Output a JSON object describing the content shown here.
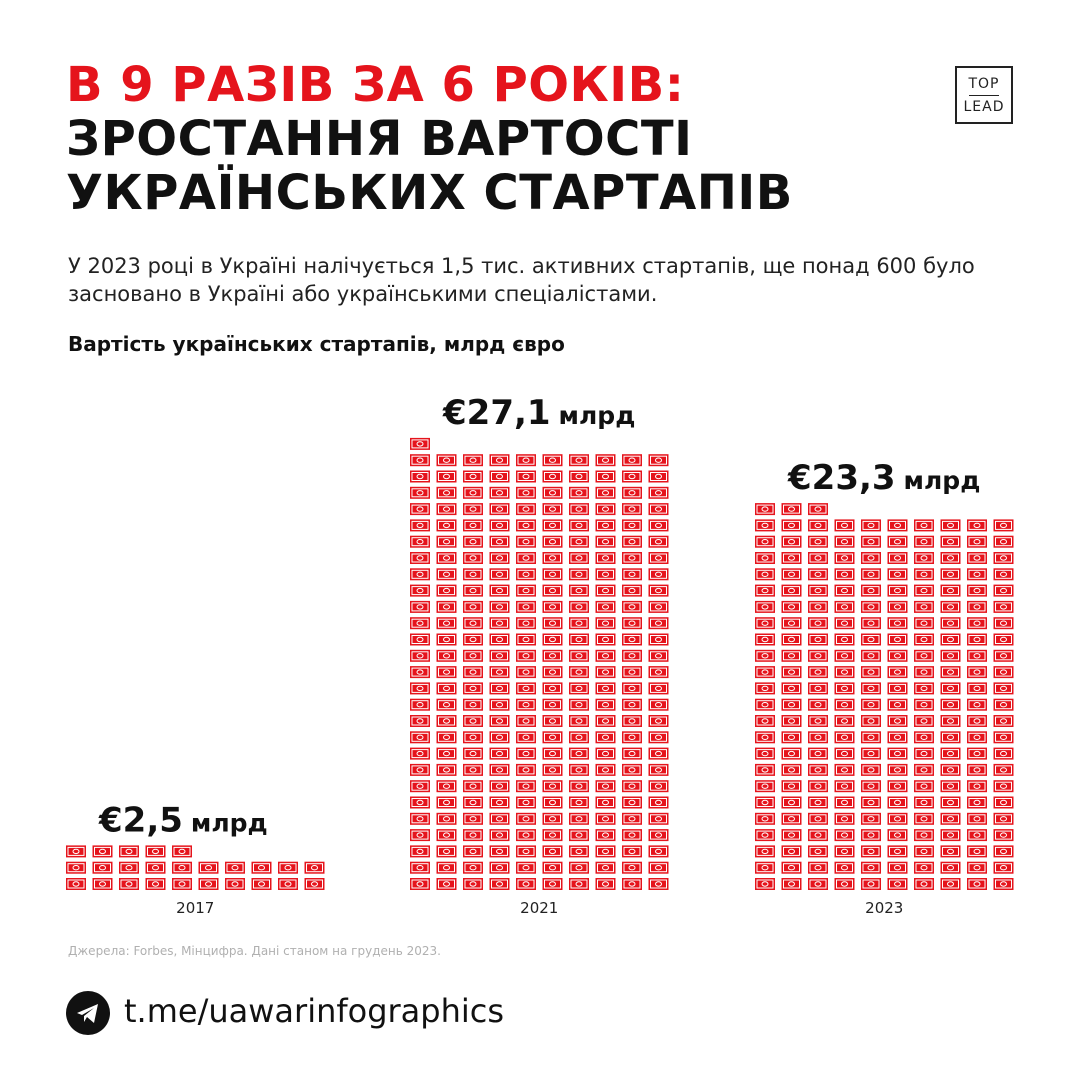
{
  "header": {
    "title_red": "В 9 РАЗІВ ЗА 6 РОКІВ:",
    "title_line2": "ЗРОСТАННЯ ВАРТОСТІ",
    "title_line3": "УКРАЇНСЬКИХ СТАРТАПІВ",
    "logo_top": "TOP",
    "logo_bottom": "LEAD"
  },
  "intro": "У 2023 році в Україні налічується 1,5 тис. активних стартапів, ще понад 600 було засновано в Україні або українськими спеціалістами.",
  "chart_data": {
    "type": "bar",
    "title": "Вартість українських стартапів, млрд євро",
    "categories": [
      "2017",
      "2021",
      "2023"
    ],
    "values": [
      2.5,
      27.1,
      23.3
    ],
    "value_labels": [
      "€2,5 млрд",
      "€27,1 млрд",
      "€23,3 млрд"
    ],
    "unit": "млрд євро",
    "colors": {
      "bar": "#e5141c",
      "label": "#111111"
    }
  },
  "footer": {
    "source": "Джерела: Forbes, Мінцифра. Дані станом на грудень 2023.",
    "link": "t.me/uawarinfographics",
    "telegram_icon": "telegram-icon"
  },
  "colors": {
    "accent": "#e5141c",
    "text": "#111111",
    "muted": "#b0b0b0"
  }
}
